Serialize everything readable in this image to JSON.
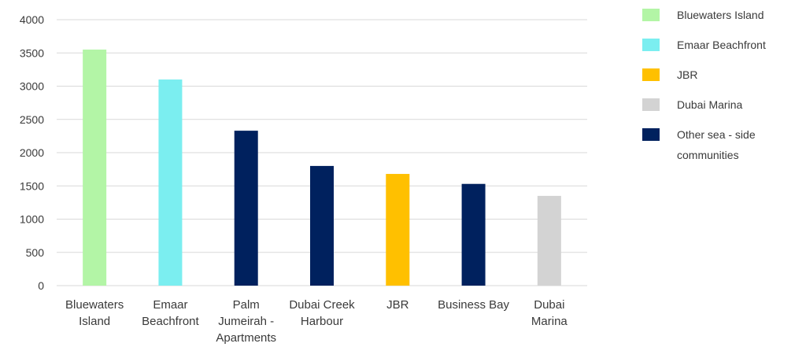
{
  "chart_data": {
    "type": "bar",
    "title": "",
    "xlabel": "",
    "ylabel": "",
    "ylim": [
      0,
      4000
    ],
    "yticks": [
      0,
      500,
      1000,
      1500,
      2000,
      2500,
      3000,
      3500,
      4000
    ],
    "grid": true,
    "legend_position": "right",
    "categories": [
      [
        "Bluewaters",
        "Island"
      ],
      [
        "Emaar",
        "Beachfront"
      ],
      [
        "Palm",
        "Jumeirah -",
        "Apartments"
      ],
      [
        "Dubai Creek",
        "Harbour"
      ],
      [
        "JBR"
      ],
      [
        "Business Bay"
      ],
      [
        "Dubai",
        "Marina"
      ]
    ],
    "values": [
      3550,
      3100,
      2330,
      1800,
      1680,
      1530,
      1350
    ],
    "bar_groups": [
      "Bluewaters Island",
      "Emaar Beachfront",
      "Other sea - side communities",
      "Other sea - side communities",
      "JBR",
      "Other sea - side communities",
      "Dubai Marina"
    ],
    "legend": [
      {
        "name": "Bluewaters Island",
        "lines": [
          "Bluewaters Island"
        ],
        "color": "#b3f5a6"
      },
      {
        "name": "Emaar Beachfront",
        "lines": [
          "Emaar Beachfront"
        ],
        "color": "#7beef0"
      },
      {
        "name": "JBR",
        "lines": [
          "JBR"
        ],
        "color": "#ffc000"
      },
      {
        "name": "Dubai Marina",
        "lines": [
          "Dubai Marina"
        ],
        "color": "#d3d3d3"
      },
      {
        "name": "Other sea - side communities",
        "lines": [
          "Other sea - side",
          "communities"
        ],
        "color": "#00215e"
      }
    ]
  }
}
